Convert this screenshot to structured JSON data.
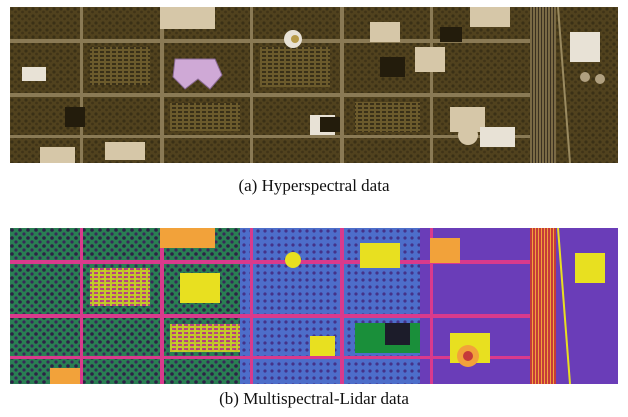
{
  "figure": {
    "subfigures": [
      {
        "label": "(a)",
        "caption": "Hyperspectral data",
        "image": {
          "kind": "aerial-urban-scene",
          "palette": [
            "#2b2413",
            "#5a4a22",
            "#8a7530",
            "#b79a48",
            "#d6c7a8",
            "#e8e2d6",
            "#cfa9d6"
          ]
        }
      },
      {
        "label": "(b)",
        "caption": "Multispectral-Lidar data",
        "image": {
          "kind": "aerial-urban-scene-false-color",
          "palette": [
            "#1a8f3a",
            "#6a3db8",
            "#d93a8c",
            "#e8e020",
            "#3a8fd6",
            "#f2a23a",
            "#1c1c2a"
          ]
        }
      }
    ]
  }
}
